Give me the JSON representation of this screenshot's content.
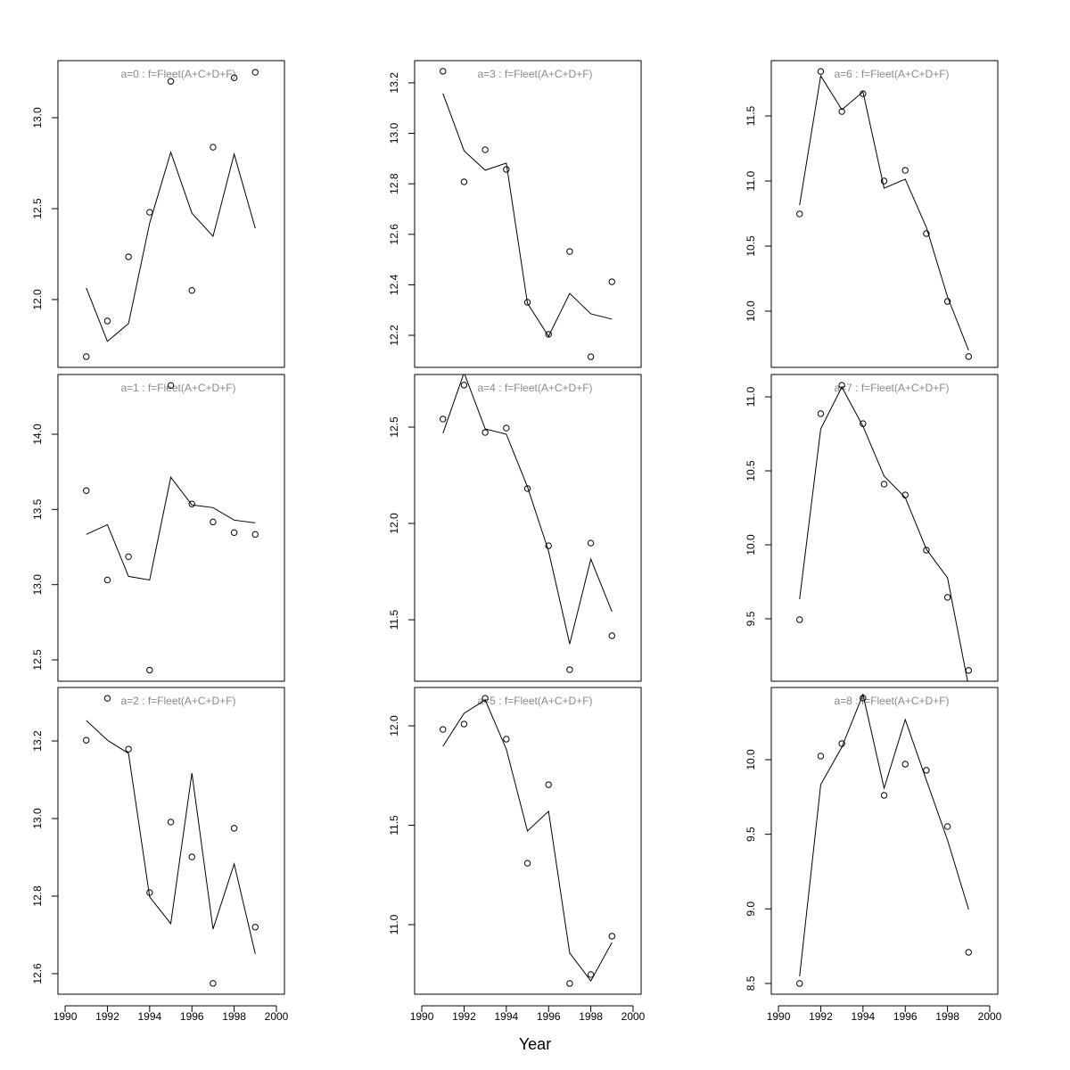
{
  "x_label": "Year",
  "chart_data": [
    {
      "type": "line",
      "title": "a=0  :  f=Fleet(A+C+D+F)",
      "x": [
        1991,
        1992,
        1993,
        1994,
        1995,
        1996,
        1997,
        1998,
        1999
      ],
      "series": [
        {
          "style": "points",
          "color": "#000000",
          "values": [
            11.686,
            11.882,
            12.235,
            12.48,
            13.2,
            12.05,
            12.838,
            13.22,
            13.25
          ]
        },
        {
          "style": "line",
          "color": "#000000",
          "values": [
            12.064,
            11.77,
            11.868,
            12.42,
            12.81,
            12.475,
            12.348,
            12.8,
            12.392
          ]
        }
      ],
      "xlim": [
        1989.66,
        2000.38
      ],
      "ylim": [
        11.627,
        13.314
      ],
      "yticks": [
        {
          "value": 12,
          "label": "12.0"
        },
        12.5,
        {
          "value": 13,
          "label": "13.0"
        }
      ]
    },
    {
      "type": "line",
      "title": "a=1  :  f=Fleet(A+C+D+F)",
      "x": [
        1991,
        1992,
        1993,
        1994,
        1995,
        1996,
        1997,
        1998,
        1999
      ],
      "series": [
        {
          "style": "points",
          "color": "#000000",
          "values": [
            13.625,
            13.031,
            13.186,
            12.432,
            14.324,
            13.536,
            13.417,
            13.346,
            13.334
          ]
        },
        {
          "style": "line",
          "color": "#000000",
          "values": [
            13.334,
            13.399,
            13.055,
            13.031,
            13.714,
            13.53,
            13.512,
            13.429,
            13.411
          ]
        }
      ],
      "xlim": [
        1989.66,
        2000.38
      ],
      "ylim": [
        12.358,
        14.397
      ],
      "yticks": [
        12.5,
        {
          "value": 13,
          "label": "13.0"
        },
        13.5,
        {
          "value": 14,
          "label": "14.0"
        }
      ]
    },
    {
      "type": "line",
      "title": "a=2  :  f=Fleet(A+C+D+F)",
      "x": [
        1991,
        1992,
        1993,
        1994,
        1995,
        1996,
        1997,
        1998,
        1999
      ],
      "series": [
        {
          "style": "points",
          "color": "#000000",
          "values": [
            13.202,
            13.31,
            13.179,
            12.809,
            12.991,
            12.901,
            12.575,
            12.975,
            12.72
          ]
        },
        {
          "style": "line",
          "color": "#000000",
          "values": [
            13.253,
            13.202,
            13.168,
            12.798,
            12.729,
            13.117,
            12.715,
            12.883,
            12.651
          ]
        }
      ],
      "xlim": [
        1989.66,
        2000.38
      ],
      "ylim": [
        12.547,
        13.338
      ],
      "yticks": [
        12.6,
        12.8,
        {
          "value": 13,
          "label": "13.0"
        },
        13.2
      ],
      "xticks": [
        1990,
        1992,
        1994,
        1996,
        1998,
        2000
      ]
    },
    {
      "type": "line",
      "title": "a=3  :  f=Fleet(A+C+D+F)",
      "x": [
        1991,
        1992,
        1993,
        1994,
        1995,
        1996,
        1997,
        1998,
        1999
      ],
      "series": [
        {
          "style": "points",
          "color": "#000000",
          "values": [
            13.246,
            12.808,
            12.935,
            12.857,
            12.331,
            12.204,
            12.532,
            12.115,
            12.412
          ]
        },
        {
          "style": "line",
          "color": "#000000",
          "values": [
            13.158,
            12.931,
            12.854,
            12.882,
            12.327,
            12.196,
            12.366,
            12.285,
            12.264
          ]
        }
      ],
      "xlim": [
        1989.66,
        2000.38
      ],
      "ylim": [
        12.073,
        13.288
      ],
      "yticks": [
        12.2,
        12.4,
        12.6,
        12.8,
        {
          "value": 13,
          "label": "13.0"
        },
        13.2
      ]
    },
    {
      "type": "line",
      "title": "a=4  :  f=Fleet(A+C+D+F)",
      "x": [
        1991,
        1992,
        1993,
        1994,
        1995,
        1996,
        1997,
        1998,
        1999
      ],
      "series": [
        {
          "style": "points",
          "color": "#000000",
          "values": [
            12.542,
            12.718,
            12.472,
            12.495,
            12.181,
            11.884,
            11.241,
            11.898,
            11.417
          ]
        },
        {
          "style": "line",
          "color": "#000000",
          "values": [
            12.468,
            12.782,
            12.491,
            12.463,
            12.19,
            11.856,
            11.375,
            11.815,
            11.542
          ]
        }
      ],
      "xlim": [
        1989.66,
        2000.38
      ],
      "ylim": [
        11.181,
        12.773
      ],
      "yticks": [
        11.5,
        {
          "value": 12,
          "label": "12.0"
        },
        12.5
      ]
    },
    {
      "type": "line",
      "title": "a=5  :  f=Fleet(A+C+D+F)",
      "x": [
        1991,
        1992,
        1993,
        1994,
        1995,
        1996,
        1997,
        1998,
        1999
      ],
      "series": [
        {
          "style": "points",
          "color": "#000000",
          "values": [
            11.982,
            12.009,
            12.139,
            11.933,
            11.309,
            11.704,
            10.704,
            10.749,
            10.942
          ]
        },
        {
          "style": "line",
          "color": "#000000",
          "values": [
            11.897,
            12.063,
            12.13,
            11.883,
            11.471,
            11.57,
            10.857,
            10.717,
            10.91
          ]
        }
      ],
      "xlim": [
        1989.66,
        2000.38
      ],
      "ylim": [
        10.65,
        12.193
      ],
      "yticks": [
        {
          "value": 11,
          "label": "11.0"
        },
        11.5,
        {
          "value": 12,
          "label": "12.0"
        }
      ],
      "xticks": [
        1990,
        1992,
        1994,
        1996,
        1998,
        2000
      ]
    },
    {
      "type": "line",
      "title": "a=6  :  f=Fleet(A+C+D+F)",
      "x": [
        1991,
        1992,
        1993,
        1994,
        1995,
        1996,
        1997,
        1998,
        1999
      ],
      "series": [
        {
          "style": "points",
          "color": "#000000",
          "values": [
            10.747,
            11.842,
            11.534,
            11.671,
            11.0,
            11.082,
            10.596,
            10.075,
            9.651
          ]
        },
        {
          "style": "line",
          "color": "#000000",
          "values": [
            10.815,
            11.808,
            11.548,
            11.685,
            10.945,
            11.014,
            10.644,
            10.11,
            9.699
          ]
        }
      ],
      "xlim": [
        1989.66,
        2000.38
      ],
      "ylim": [
        9.568,
        11.925
      ],
      "yticks": [
        {
          "value": 10,
          "label": "10.0"
        },
        10.5,
        {
          "value": 11,
          "label": "11.0"
        },
        11.5
      ]
    },
    {
      "type": "line",
      "title": "a=7  :  f=Fleet(A+C+D+F)",
      "x": [
        1991,
        1992,
        1993,
        1994,
        1995,
        1996,
        1997,
        1998,
        1999
      ],
      "series": [
        {
          "style": "points",
          "color": "#000000",
          "values": [
            9.494,
            10.886,
            11.078,
            10.819,
            10.41,
            10.337,
            9.964,
            9.645,
            9.151
          ]
        },
        {
          "style": "line",
          "color": "#000000",
          "values": [
            9.633,
            10.783,
            11.066,
            10.801,
            10.464,
            10.319,
            9.97,
            9.777,
            9.042
          ]
        }
      ],
      "xlim": [
        1989.66,
        2000.38
      ],
      "ylim": [
        9.078,
        11.151
      ],
      "yticks": [
        9.5,
        {
          "value": 10,
          "label": "10.0"
        },
        10.5,
        {
          "value": 11,
          "label": "11.0"
        }
      ]
    },
    {
      "type": "line",
      "title": "a=8  :  f=Fleet(A+C+D+F)",
      "x": [
        1991,
        1992,
        1993,
        1994,
        1995,
        1996,
        1997,
        1998,
        1999
      ],
      "series": [
        {
          "style": "points",
          "color": "#000000",
          "values": [
            8.5,
            10.024,
            10.108,
            10.413,
            9.761,
            9.97,
            9.929,
            9.552,
            8.709
          ]
        },
        {
          "style": "line",
          "color": "#000000",
          "values": [
            8.548,
            9.833,
            10.084,
            10.437,
            9.809,
            10.269,
            9.863,
            9.462,
            8.996
          ]
        }
      ],
      "xlim": [
        1989.66,
        2000.38
      ],
      "ylim": [
        8.428,
        10.484
      ],
      "yticks": [
        8.5,
        {
          "value": 9,
          "label": "9.0"
        },
        9.5,
        {
          "value": 10,
          "label": "10.0"
        }
      ],
      "xticks": [
        1990,
        1992,
        1994,
        1996,
        1998,
        2000
      ]
    }
  ]
}
